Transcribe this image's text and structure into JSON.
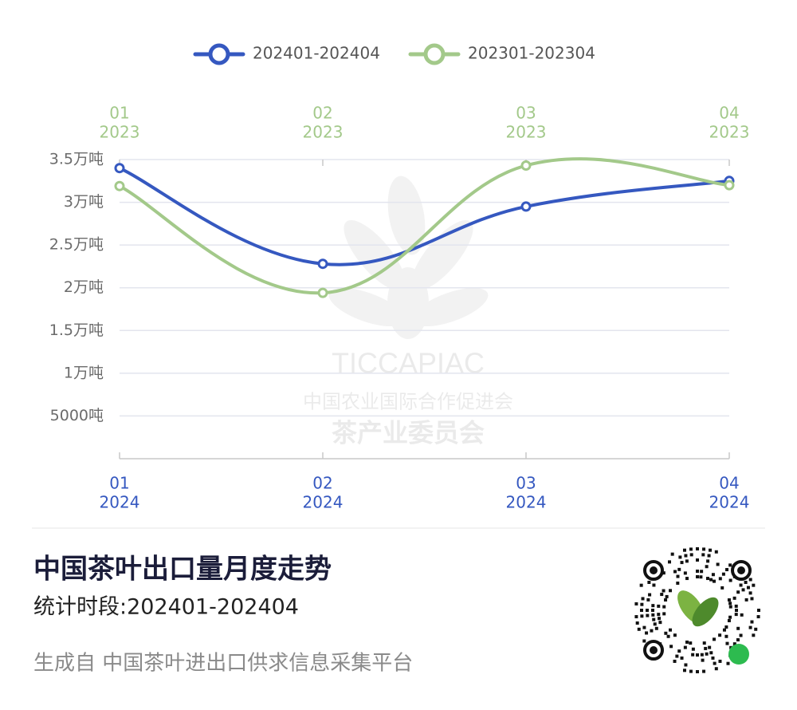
{
  "chart_data": {
    "type": "line",
    "categories": [
      [
        "01",
        "2024"
      ],
      [
        "02",
        "2024"
      ],
      [
        "03",
        "2024"
      ],
      [
        "04",
        "2024"
      ]
    ],
    "x2_categories": [
      [
        "01",
        "2023"
      ],
      [
        "02",
        "2023"
      ],
      [
        "03",
        "2023"
      ],
      [
        "04",
        "2023"
      ]
    ],
    "series": [
      {
        "name": "202401-202404",
        "color": "#3558c0",
        "values": [
          34000,
          22800,
          29500,
          32500
        ]
      },
      {
        "name": "202301-202304",
        "color": "#a3c98a",
        "values": [
          31900,
          19400,
          34300,
          32000
        ]
      }
    ],
    "ylim": [
      0,
      35000
    ],
    "yticks": [
      {
        "value": 5000,
        "label": "5000吨"
      },
      {
        "value": 10000,
        "label": "1万吨"
      },
      {
        "value": 15000,
        "label": "1.5万吨"
      },
      {
        "value": 20000,
        "label": "2万吨"
      },
      {
        "value": 25000,
        "label": "2.5万吨"
      },
      {
        "value": 30000,
        "label": "3万吨"
      },
      {
        "value": 35000,
        "label": "3.5万吨"
      }
    ],
    "grid": true,
    "legend": "top",
    "watermark": [
      "TICCAPIAC",
      "中国农业国际合作促进会",
      "茶产业委员会"
    ]
  },
  "footer": {
    "title": "中国茶叶出口量月度走势",
    "subtitle": "统计时段:202401-202404",
    "source": "生成自 中国茶叶进出口供求信息采集平台"
  }
}
